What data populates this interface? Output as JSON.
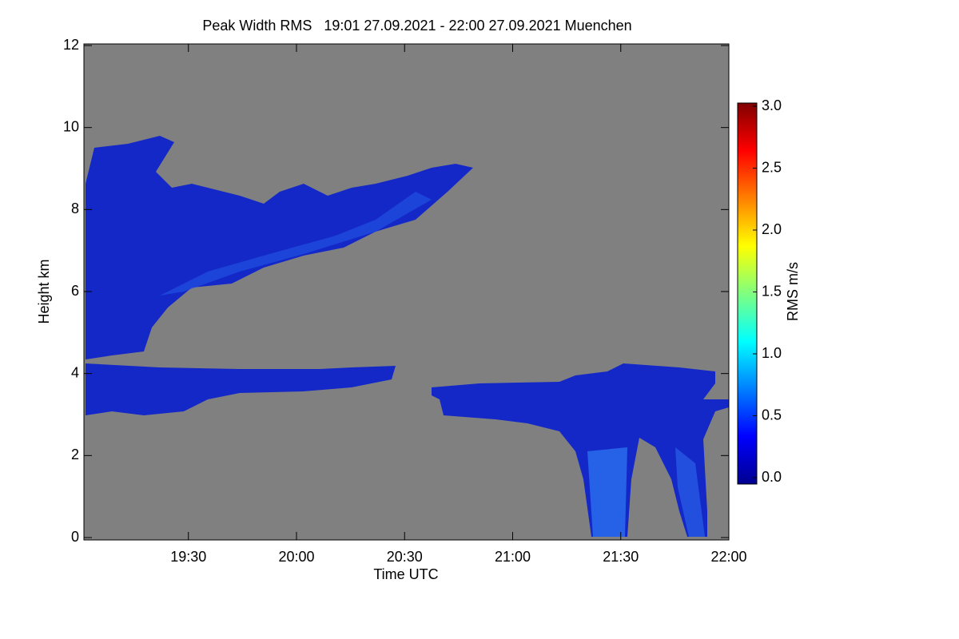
{
  "chart_data": {
    "type": "heatmap",
    "title": "Peak Width RMS   19:01 27.09.2021 - 22:00 27.09.2021 Muenchen",
    "x_label": "Time UTC",
    "y_label": "Height km",
    "xlim": [
      19.01667,
      22.0
    ],
    "xticks": [
      {
        "value": 19.5,
        "label": "19:30"
      },
      {
        "value": 20.0,
        "label": "20:00"
      },
      {
        "value": 20.5,
        "label": "20:30"
      },
      {
        "value": 21.0,
        "label": "21:00"
      },
      {
        "value": 21.5,
        "label": "21:30"
      },
      {
        "value": 22.0,
        "label": "22:00"
      }
    ],
    "ylim": [
      0,
      12
    ],
    "yticks": [
      0,
      2,
      4,
      6,
      8,
      10,
      12
    ],
    "colorbar": {
      "label": "RMS m/s",
      "clim": [
        0,
        3
      ],
      "ticks": [
        {
          "value": 0,
          "label": "0.0"
        },
        {
          "value": 0.5,
          "label": "0.5"
        },
        {
          "value": 1,
          "label": "1.0"
        },
        {
          "value": 1.5,
          "label": "1.5"
        },
        {
          "value": 2,
          "label": "2.0"
        },
        {
          "value": 2.5,
          "label": "2.5"
        },
        {
          "value": 3,
          "label": "3.0"
        }
      ]
    }
  }
}
